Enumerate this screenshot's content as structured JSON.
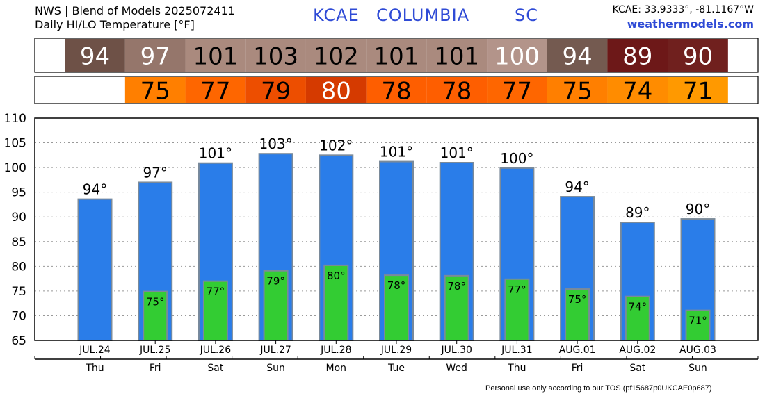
{
  "header": {
    "title_line1": "NWS | Blend of Models 2025072411",
    "title_line2": "Daily HI/LO Temperature [°F]",
    "station_code": "KCAE",
    "station_city": "COLUMBIA",
    "station_state": "SC",
    "coordinates": "KCAE: 33.9333°, -81.1167°W",
    "website": "weathermodels.com"
  },
  "footer": "Personal use only according to our TOS (pf15687p0UKCAE0p687)",
  "colors": {
    "hi_bar": "#2a7de9",
    "lo_bar": "#33cc33",
    "bar_edge": "#7a8a9a"
  },
  "hi_strip": {
    "values": [
      "94",
      "97",
      "101",
      "103",
      "102",
      "101",
      "101",
      "100",
      "94",
      "89",
      "90"
    ],
    "colors": [
      "#6e5147",
      "#95766b",
      "#aa8a7e",
      "#aa8a7e",
      "#aa8a7e",
      "#aa8a7e",
      "#aa8a7e",
      "#b3948a",
      "#745a50",
      "#6d1818",
      "#70201e"
    ],
    "text_colors": [
      "#ffffff",
      "#ffffff",
      "#000000",
      "#000000",
      "#000000",
      "#000000",
      "#000000",
      "#ffffff",
      "#ffffff",
      "#ffffff",
      "#ffffff"
    ]
  },
  "lo_strip": {
    "values": [
      "",
      "75",
      "77",
      "79",
      "80",
      "78",
      "78",
      "77",
      "75",
      "74",
      "71"
    ],
    "colors": [
      "#ffffff",
      "#ff7f00",
      "#fe6600",
      "#ed4e00",
      "#d53a00",
      "#fe5e00",
      "#fe5e00",
      "#fe6600",
      "#ff7f00",
      "#ff8c00",
      "#ff9900"
    ],
    "text_colors": [
      "#000000",
      "#000000",
      "#000000",
      "#000000",
      "#ffffff",
      "#000000",
      "#000000",
      "#000000",
      "#000000",
      "#000000",
      "#000000"
    ]
  },
  "chart_data": {
    "type": "bar",
    "title": "Daily HI/LO Temperature [°F]",
    "categories": [
      "JUL.24",
      "JUL.25",
      "JUL.26",
      "JUL.27",
      "JUL.28",
      "JUL.29",
      "JUL.30",
      "JUL.31",
      "AUG.01",
      "AUG.02",
      "AUG.03"
    ],
    "weekdays": [
      "Thu",
      "Fri",
      "Sat",
      "Sun",
      "Mon",
      "Tue",
      "Wed",
      "Thu",
      "Fri",
      "Sat",
      "Sun"
    ],
    "series": [
      {
        "values": [
          93.6,
          97.0,
          100.9,
          102.8,
          102.5,
          101.2,
          101.0,
          99.9,
          94.1,
          88.9,
          89.6
        ],
        "labels": [
          "94°",
          "97°",
          "101°",
          "103°",
          "102°",
          "101°",
          "101°",
          "100°",
          "94°",
          "89°",
          "90°"
        ]
      },
      {
        "values": [
          null,
          74.9,
          77.0,
          79.1,
          80.2,
          78.2,
          78.1,
          77.4,
          75.4,
          73.9,
          71.1
        ],
        "labels": [
          "",
          "75°",
          "77°",
          "79°",
          "80°",
          "78°",
          "78°",
          "77°",
          "75°",
          "74°",
          "71°"
        ]
      }
    ],
    "ylim": [
      65,
      110
    ],
    "yticks": [
      "65",
      "70",
      "75",
      "80",
      "85",
      "90",
      "95",
      "100",
      "105",
      "110"
    ],
    "grid": true
  }
}
